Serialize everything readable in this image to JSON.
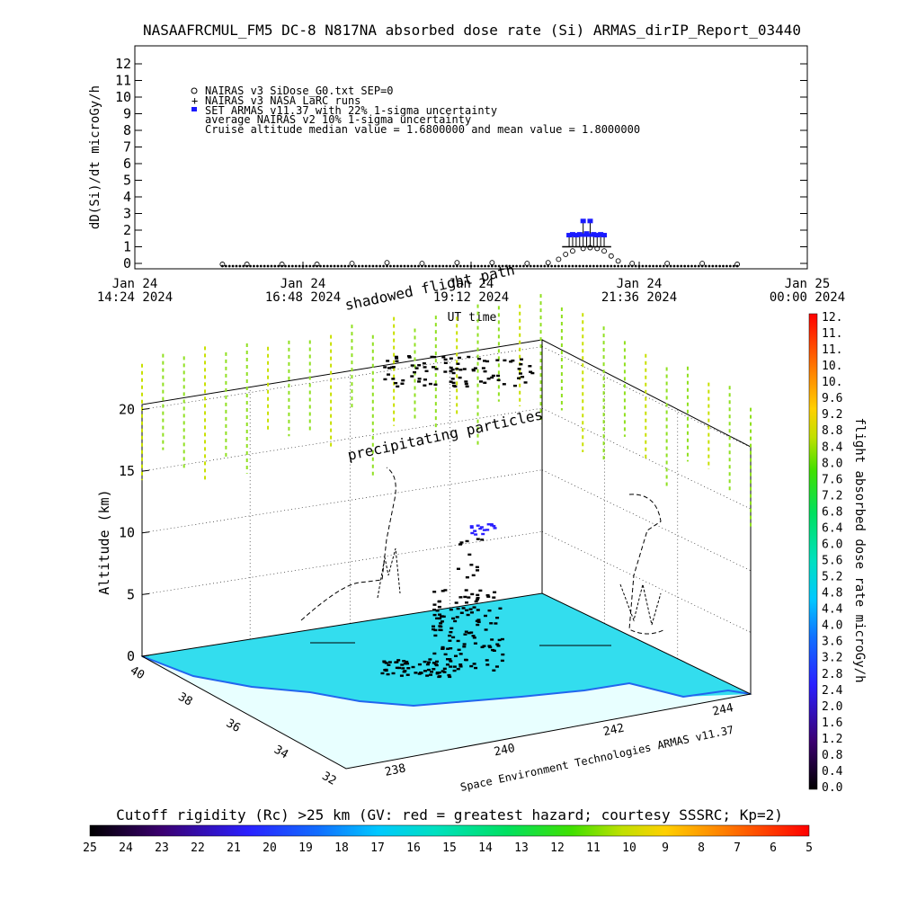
{
  "title": "NASAAFRCMUL_FM5 DC-8   N817NA absorbed dose rate (Si) ARMAS_dirIP_Report_03440",
  "credit": "Space Environment Technologies ARMAS v11.37",
  "overlay_labels": {
    "shadowed": "shadowed flight path",
    "precip": "precipitating particles"
  },
  "chart_data": [
    {
      "type": "scatter",
      "ylabel": "dD(Si)/dt microGy/h",
      "xlabel": "UT time",
      "ylim": [
        0,
        12
      ],
      "yticks": [
        "0",
        "1",
        "2",
        "3",
        "4",
        "5",
        "6",
        "7",
        "8",
        "9",
        "10",
        "11",
        "12"
      ],
      "xticks": [
        {
          "l1": "Jan 24",
          "l2": "14:24 2024"
        },
        {
          "l1": "Jan 24",
          "l2": "16:48 2024"
        },
        {
          "l1": "Jan 24",
          "l2": "19:12 2024"
        },
        {
          "l1": "Jan 24",
          "l2": "21:36 2024"
        },
        {
          "l1": "Jan 25",
          "l2": "00:00 2024"
        }
      ],
      "legend": [
        "NAIRAS v3 SiDose_G0.txt SEP=0",
        "NAIRAS v3 NASA LaRC runs",
        "SET ARMAS v11.37 with 22% 1-sigma uncertainty",
        "average NAIRAS v2 10% 1-sigma uncertainty",
        "Cruise altitude median value = 1.6800000 and mean value = 1.8000000"
      ],
      "series": [
        {
          "name": "NAIRAS v3 SiDose_G0.txt SEP=0",
          "x": [
            15.65,
            16.0,
            16.5,
            17.0,
            17.5,
            18.0,
            18.5,
            19.0,
            19.5,
            20.0,
            20.3,
            20.45,
            20.55,
            20.65,
            20.8,
            20.9,
            21.0,
            21.1,
            21.2,
            21.3,
            21.5,
            22.0,
            22.5,
            23.0
          ],
          "y": [
            0.0,
            0.0,
            0.0,
            0.0,
            0.05,
            0.1,
            0.05,
            0.1,
            0.1,
            0.05,
            0.1,
            0.3,
            0.6,
            0.8,
            0.95,
            1.0,
            0.95,
            0.8,
            0.5,
            0.2,
            0.05,
            0.05,
            0.05,
            0.0
          ]
        },
        {
          "name": "SET ARMAS v11.37 with 22% 1-sigma uncertainty",
          "x": [
            20.6,
            20.65,
            20.7,
            20.75,
            20.8,
            20.85,
            20.9,
            20.95,
            21.0,
            21.05,
            21.1
          ],
          "y": [
            1.7,
            1.75,
            1.7,
            1.75,
            2.55,
            1.8,
            2.55,
            1.75,
            1.7,
            1.75,
            1.7
          ]
        }
      ]
    },
    {
      "type": "scatter",
      "zlabel": "Altitude (km)",
      "zticks": [
        "0",
        "5",
        "10",
        "15",
        "20"
      ],
      "lat_ticks": [
        "40",
        "38",
        "36",
        "34",
        "32"
      ],
      "lon_ticks": [
        "238",
        "240",
        "242",
        "244"
      ],
      "colorbar_title": "flight absorbed dose rate microGy/h",
      "colorbar_ticks": [
        "0.0",
        "0.4",
        "0.8",
        "1.2",
        "1.6",
        "2.0",
        "2.4",
        "2.8",
        "3.2",
        "3.6",
        "4.0",
        "4.4",
        "4.8",
        "5.2",
        "5.6",
        "6.0",
        "6.4",
        "6.8",
        "7.2",
        "7.6",
        "8.0",
        "8.4",
        "8.8",
        "9.2",
        "9.6",
        "10.",
        "10.",
        "11.",
        "11.",
        "12."
      ]
    },
    {
      "type": "heatmap",
      "title": "Cutoff rigidity (Rc) >25 km (GV: red = greatest hazard; courtesy SSSRC; Kp=2)",
      "ticks": [
        "25",
        "24",
        "23",
        "22",
        "21",
        "20",
        "19",
        "18",
        "17",
        "16",
        "15",
        "14",
        "13",
        "12",
        "11",
        "10",
        "9",
        "8",
        "7",
        "6",
        "5"
      ]
    }
  ]
}
